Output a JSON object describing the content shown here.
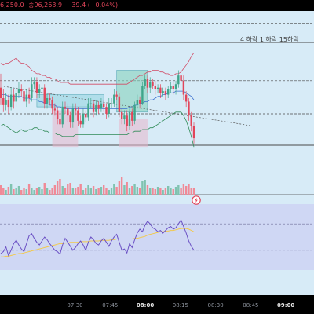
{
  "header": {
    "open_text": "6,250.0",
    "close_text": "종96,263.9",
    "change_text": "−39.4 (−0.04%)",
    "text_color": "#e2455a"
  },
  "timeframe_label": "4 하락 1 하락 15하락",
  "alert_icon": "lightning-alert-icon",
  "chart_data": [
    {
      "type": "candlestick",
      "x_ticks": [
        "07:30",
        "07:45",
        "08:00",
        "08:15",
        "08:30",
        "08:45",
        "09:00"
      ],
      "x_ticks_minutes": [
        450,
        465,
        480,
        495,
        510,
        525,
        540
      ],
      "bold_ticks": [
        "08:00",
        "09:00"
      ],
      "xlim_minutes": [
        418,
        552
      ],
      "ylim": [
        0,
        100
      ],
      "candles": [
        [
          0,
          56,
          50,
          64,
          46
        ],
        [
          1,
          50,
          46,
          55,
          42
        ],
        [
          2,
          46,
          49,
          53,
          43
        ],
        [
          3,
          49,
          45,
          52,
          41
        ],
        [
          4,
          45,
          52,
          56,
          43
        ],
        [
          5,
          52,
          48,
          55,
          44
        ],
        [
          6,
          48,
          53,
          57,
          45
        ],
        [
          7,
          53,
          55,
          59,
          50
        ],
        [
          8,
          55,
          54,
          58,
          51
        ],
        [
          9,
          54,
          48,
          57,
          45
        ],
        [
          10,
          48,
          52,
          55,
          45
        ],
        [
          11,
          52,
          50,
          56,
          47
        ],
        [
          12,
          50,
          58,
          62,
          48
        ],
        [
          13,
          58,
          59,
          62,
          55
        ],
        [
          14,
          59,
          53,
          62,
          50
        ],
        [
          15,
          53,
          55,
          58,
          50
        ],
        [
          16,
          55,
          56,
          58,
          52
        ],
        [
          17,
          56,
          47,
          58,
          44
        ],
        [
          18,
          47,
          50,
          53,
          44
        ],
        [
          19,
          50,
          49,
          53,
          46
        ],
        [
          20,
          49,
          44,
          51,
          41
        ],
        [
          21,
          44,
          43,
          47,
          40
        ],
        [
          22,
          43,
          38,
          45,
          35
        ],
        [
          23,
          38,
          35,
          41,
          33
        ],
        [
          24,
          35,
          45,
          48,
          33
        ],
        [
          25,
          45,
          44,
          48,
          41
        ],
        [
          26,
          44,
          40,
          47,
          36
        ],
        [
          27,
          40,
          36,
          42,
          33
        ],
        [
          28,
          36,
          44,
          47,
          33
        ],
        [
          29,
          44,
          43,
          47,
          40
        ],
        [
          30,
          43,
          37,
          45,
          34
        ],
        [
          31,
          37,
          35,
          40,
          33
        ],
        [
          32,
          35,
          41,
          44,
          33
        ],
        [
          33,
          41,
          39,
          43,
          36
        ],
        [
          34,
          39,
          47,
          50,
          37
        ],
        [
          35,
          47,
          47,
          50,
          44
        ],
        [
          36,
          47,
          42,
          49,
          39
        ],
        [
          37,
          42,
          46,
          49,
          40
        ],
        [
          38,
          46,
          44,
          48,
          41
        ],
        [
          39,
          44,
          47,
          50,
          42
        ],
        [
          40,
          47,
          45,
          49,
          42
        ],
        [
          41,
          45,
          41,
          47,
          38
        ],
        [
          42,
          41,
          47,
          50,
          39
        ],
        [
          43,
          47,
          47,
          50,
          44
        ],
        [
          44,
          47,
          52,
          55,
          45
        ],
        [
          45,
          52,
          51,
          54,
          49
        ],
        [
          46,
          51,
          42,
          53,
          39
        ],
        [
          47,
          42,
          38,
          44,
          35
        ],
        [
          48,
          38,
          40,
          43,
          35
        ],
        [
          49,
          40,
          34,
          43,
          31
        ],
        [
          50,
          34,
          42,
          44,
          32
        ],
        [
          51,
          42,
          37,
          44,
          34
        ],
        [
          52,
          37,
          46,
          48,
          35
        ],
        [
          53,
          46,
          49,
          52,
          44
        ],
        [
          54,
          49,
          47,
          51,
          44
        ],
        [
          55,
          47,
          57,
          59,
          46
        ],
        [
          56,
          57,
          61,
          63,
          55
        ],
        [
          57,
          61,
          56,
          63,
          53
        ],
        [
          58,
          56,
          59,
          62,
          53
        ],
        [
          59,
          59,
          57,
          61,
          55
        ],
        [
          60,
          57,
          55,
          60,
          52
        ],
        [
          61,
          55,
          56,
          58,
          53
        ],
        [
          62,
          56,
          53,
          58,
          50
        ],
        [
          63,
          53,
          54,
          56,
          51
        ],
        [
          64,
          54,
          52,
          56,
          49
        ],
        [
          65,
          52,
          55,
          57,
          50
        ],
        [
          66,
          55,
          57,
          59,
          53
        ],
        [
          67,
          57,
          55,
          59,
          52
        ],
        [
          68,
          55,
          58,
          60,
          52
        ],
        [
          69,
          58,
          63,
          66,
          56
        ],
        [
          70,
          63,
          60,
          65,
          57
        ],
        [
          71,
          60,
          52,
          63,
          49
        ],
        [
          72,
          52,
          48,
          54,
          45
        ],
        [
          73,
          48,
          40,
          50,
          37
        ],
        [
          74,
          40,
          34,
          42,
          31
        ],
        [
          75,
          34,
          27,
          36,
          24
        ]
      ],
      "bollinger_upper": [
        70,
        69,
        70,
        70,
        71,
        72,
        73,
        71,
        70,
        70,
        69,
        68,
        66,
        65,
        64,
        64,
        63,
        63,
        62,
        62,
        61,
        61,
        60,
        59,
        59,
        59,
        59,
        58,
        58,
        58,
        58,
        58,
        58,
        58,
        58,
        58,
        58,
        58,
        58,
        58,
        58,
        58,
        58,
        58,
        58,
        58,
        58,
        58,
        58,
        58,
        59,
        60,
        61,
        62,
        63,
        63,
        64,
        65,
        65,
        66,
        66,
        66,
        65,
        65,
        64,
        64,
        63,
        63,
        64,
        64,
        65,
        67,
        69,
        71,
        74,
        76
      ],
      "bollinger_middle": [
        52,
        52,
        52,
        51,
        51,
        51,
        51,
        51,
        51,
        50,
        50,
        50,
        49,
        49,
        49,
        48,
        48,
        47,
        47,
        46,
        46,
        46,
        45,
        45,
        44,
        44,
        44,
        44,
        44,
        44,
        44,
        44,
        44,
        44,
        44,
        44,
        44,
        44,
        44,
        44,
        44,
        44,
        44,
        44,
        44,
        44,
        44,
        44,
        44,
        44,
        45,
        45,
        46,
        46,
        47,
        47,
        48,
        48,
        49,
        49,
        50,
        51,
        51,
        52,
        52,
        53,
        53,
        53,
        54,
        54,
        54,
        54,
        53,
        52,
        51,
        49
      ],
      "bollinger_lower": [
        34,
        35,
        34,
        33,
        32,
        31,
        30,
        31,
        32,
        31,
        31,
        32,
        32,
        33,
        33,
        32,
        32,
        31,
        31,
        30,
        30,
        30,
        29,
        29,
        28,
        28,
        28,
        28,
        28,
        29,
        29,
        29,
        29,
        29,
        29,
        29,
        29,
        29,
        29,
        29,
        29,
        29,
        29,
        29,
        29,
        29,
        29,
        29,
        29,
        29,
        30,
        30,
        31,
        31,
        31,
        32,
        32,
        32,
        33,
        33,
        34,
        35,
        36,
        37,
        38,
        39,
        40,
        41,
        42,
        42,
        42,
        40,
        37,
        33,
        28,
        22
      ],
      "level_lines": [
        93,
        82,
        60,
        41,
        23
      ],
      "trend_line": [
        [
          0,
          57
        ],
        [
          98,
          34
        ]
      ],
      "zones": [
        {
          "type": "range",
          "from": 14,
          "to": 40,
          "high": 52,
          "low": 45,
          "color": "#8fd3e0"
        },
        {
          "type": "range",
          "from": 45,
          "to": 57,
          "high": 66,
          "low": 42,
          "color": "#7fd0b8"
        },
        {
          "type": "demand",
          "from": 20,
          "to": 30,
          "high": 43,
          "low": 22,
          "color": "#e7b6cc"
        },
        {
          "type": "demand",
          "from": 46,
          "to": 57,
          "high": 38,
          "low": 22,
          "color": "#e7b6cc"
        }
      ],
      "up_color": "#3fa58a",
      "down_color": "#e2455a"
    },
    {
      "type": "bar",
      "name": "volume",
      "values": [
        12,
        8,
        6,
        10,
        14,
        7,
        9,
        11,
        6,
        8,
        7,
        13,
        9,
        6,
        8,
        10,
        7,
        15,
        9,
        6,
        8,
        12,
        18,
        20,
        11,
        9,
        13,
        15,
        8,
        9,
        10,
        14,
        6,
        9,
        12,
        8,
        11,
        7,
        9,
        10,
        12,
        8,
        6,
        9,
        14,
        10,
        18,
        22,
        12,
        16,
        9,
        11,
        13,
        10,
        8,
        17,
        19,
        12,
        9,
        8,
        7,
        10,
        9,
        6,
        8,
        11,
        9,
        7,
        10,
        12,
        9,
        14,
        11,
        13,
        9,
        8
      ]
    },
    {
      "type": "line",
      "name": "oscillator",
      "ylim": [
        0,
        100
      ],
      "level_lines": [
        70,
        30
      ],
      "series_main": [
        25,
        28,
        35,
        22,
        30,
        40,
        45,
        38,
        32,
        28,
        40,
        52,
        55,
        48,
        42,
        38,
        44,
        50,
        46,
        40,
        35,
        30,
        28,
        24,
        38,
        48,
        42,
        36,
        30,
        34,
        40,
        44,
        38,
        30,
        42,
        50,
        46,
        40,
        38,
        44,
        48,
        42,
        36,
        44,
        50,
        54,
        42,
        30,
        32,
        26,
        40,
        34,
        46,
        56,
        62,
        58,
        68,
        74,
        70,
        64,
        62,
        58,
        60,
        56,
        60,
        64,
        66,
        62,
        64,
        70,
        76,
        66,
        56,
        44,
        36,
        30
      ],
      "series_signal": [
        20,
        20,
        21,
        21,
        22,
        23,
        24,
        25,
        25,
        26,
        27,
        28,
        29,
        30,
        31,
        32,
        33,
        34,
        35,
        36,
        37,
        38,
        39,
        40,
        40,
        41,
        41,
        42,
        42,
        42,
        42,
        43,
        43,
        43,
        43,
        44,
        44,
        44,
        44,
        45,
        45,
        45,
        45,
        46,
        46,
        47,
        47,
        47,
        47,
        47,
        47,
        47,
        48,
        48,
        49,
        50,
        51,
        53,
        54,
        55,
        56,
        57,
        58,
        58,
        59,
        59,
        60,
        60,
        61,
        62,
        63,
        63,
        63,
        62,
        60,
        58
      ]
    }
  ]
}
